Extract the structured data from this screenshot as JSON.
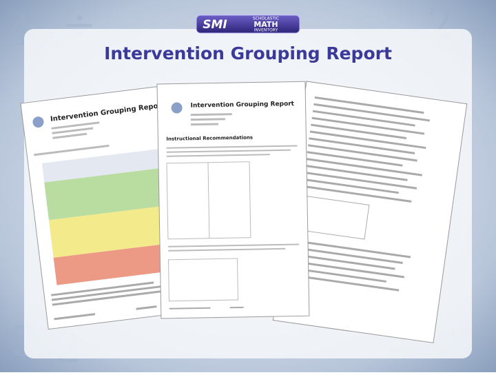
{
  "logo": {
    "mark": "SMI",
    "brand": "SCHOLASTIC",
    "name": "MATH",
    "subname": "INVENTORY"
  },
  "title": "Intervention Grouping Report",
  "documents": [
    {
      "title": "Intervention Grouping Report"
    },
    {
      "title": "Intervention Grouping Report",
      "section": "Instructional Recommendations"
    }
  ]
}
